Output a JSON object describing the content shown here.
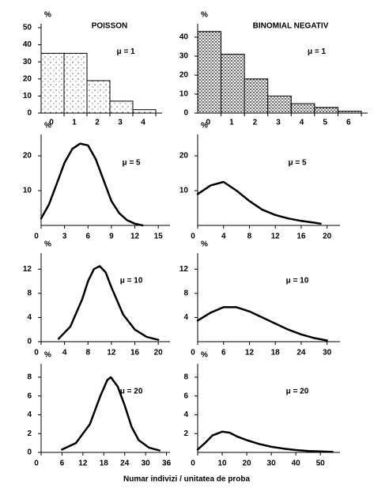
{
  "chart_data": [
    {
      "type": "bar",
      "title": "POISSON",
      "ylabel": "%",
      "annotation": "μ = 1",
      "categories": [
        "0",
        "1",
        "2",
        "3",
        "4"
      ],
      "values": [
        35,
        35,
        19,
        7,
        2
      ],
      "ylim": [
        0,
        50
      ],
      "yticks": [
        0,
        10,
        20,
        30,
        40,
        50
      ],
      "fill": "light-stipple",
      "color": "#000000"
    },
    {
      "type": "bar",
      "title": "BINOMIAL NEGATIV",
      "ylabel": "%",
      "annotation": "μ = 1",
      "categories": [
        "0",
        "1",
        "2",
        "3",
        "4",
        "5",
        "6"
      ],
      "values": [
        43,
        31,
        18,
        9,
        5,
        3,
        1
      ],
      "ylim": [
        0,
        45
      ],
      "yticks": [
        0,
        10,
        20,
        30,
        40
      ],
      "fill": "dense-stipple",
      "color": "#000000"
    },
    {
      "type": "line",
      "ylabel": "%",
      "annotation": "μ = 5",
      "x": [
        0,
        1,
        2,
        3,
        4,
        5,
        6,
        7,
        8,
        9,
        10,
        11,
        12,
        13
      ],
      "values": [
        2,
        6,
        12,
        18,
        22,
        23.5,
        23,
        19,
        13,
        7,
        3.5,
        1.5,
        0.5,
        0
      ],
      "xlim": [
        0,
        16.5
      ],
      "xticks": [
        0,
        3,
        6,
        9,
        12,
        15
      ],
      "ylim": [
        0,
        25
      ],
      "yticks": [
        10,
        20
      ],
      "color": "#000000"
    },
    {
      "type": "line",
      "ylabel": "%",
      "annotation": "μ = 5",
      "x": [
        0,
        2,
        4,
        6,
        8,
        10,
        12,
        14,
        16,
        18,
        19
      ],
      "values": [
        9,
        11.5,
        12.5,
        10,
        7,
        4.5,
        3,
        2,
        1.3,
        0.8,
        0.5
      ],
      "xlim": [
        0,
        22
      ],
      "xticks": [
        0,
        4,
        8,
        12,
        16,
        20
      ],
      "ylim": [
        0,
        25
      ],
      "yticks": [
        10,
        20
      ],
      "color": "#000000"
    },
    {
      "type": "line",
      "ylabel": "%",
      "annotation": "μ = 10",
      "x": [
        3,
        5,
        7,
        8,
        9,
        10,
        11,
        12,
        14,
        16,
        18,
        20
      ],
      "values": [
        0.5,
        2.5,
        7,
        10,
        12,
        12.5,
        11.5,
        9,
        4.5,
        2,
        0.8,
        0.3
      ],
      "xlim": [
        0,
        22
      ],
      "xticks": [
        0,
        4,
        8,
        12,
        16,
        20
      ],
      "ylim": [
        0,
        14
      ],
      "yticks": [
        0,
        4,
        8,
        12
      ],
      "color": "#000000"
    },
    {
      "type": "line",
      "ylabel": "%",
      "annotation": "μ = 10",
      "x": [
        0,
        3,
        6,
        9,
        12,
        15,
        18,
        21,
        24,
        27,
        30
      ],
      "values": [
        3.5,
        4.8,
        5.7,
        5.7,
        5,
        4,
        3,
        2,
        1.2,
        0.6,
        0.2
      ],
      "xlim": [
        0,
        33
      ],
      "xticks": [
        0,
        6,
        12,
        18,
        24,
        30
      ],
      "ylim": [
        0,
        14
      ],
      "yticks": [
        4,
        8,
        12
      ],
      "color": "#000000"
    },
    {
      "type": "line",
      "ylabel": "%",
      "annotation": "μ = 20",
      "x": [
        6,
        10,
        14,
        17,
        19,
        20,
        22,
        24,
        26,
        28,
        31,
        34
      ],
      "values": [
        0.3,
        1,
        3,
        6,
        7.7,
        8,
        7,
        5,
        2.7,
        1.3,
        0.5,
        0.2
      ],
      "xlim": [
        0,
        37
      ],
      "xticks": [
        0,
        6,
        12,
        18,
        24,
        30,
        36
      ],
      "ylim": [
        0,
        9
      ],
      "yticks": [
        0,
        2,
        4,
        6,
        8
      ],
      "color": "#000000"
    },
    {
      "type": "line",
      "ylabel": "%",
      "annotation": "μ = 20",
      "x": [
        0,
        3,
        6,
        10,
        13,
        16,
        20,
        25,
        30,
        35,
        40,
        45,
        50,
        55
      ],
      "values": [
        0.3,
        1,
        1.8,
        2.2,
        2.1,
        1.7,
        1.3,
        0.9,
        0.6,
        0.4,
        0.25,
        0.15,
        0.1,
        0.05
      ],
      "xlim": [
        0,
        58
      ],
      "xticks": [
        0,
        10,
        20,
        30,
        40,
        50
      ],
      "ylim": [
        0,
        9
      ],
      "yticks": [
        2,
        4,
        6,
        8
      ],
      "color": "#000000"
    }
  ],
  "footer": {
    "xlabel": "Numar indivizi / unitatea de proba"
  }
}
